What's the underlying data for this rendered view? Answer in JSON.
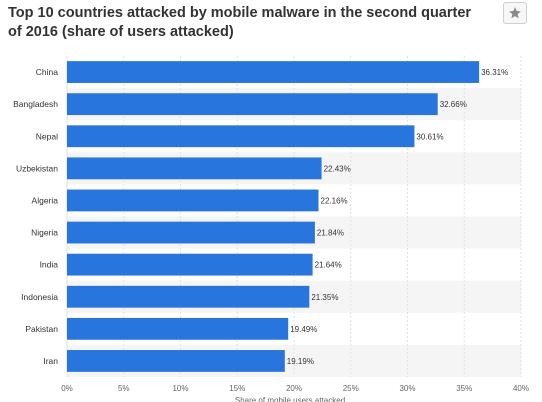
{
  "title": "Top 10 countries attacked by mobile malware in the second quarter of 2016 (share of users attacked)",
  "favorite_icon": "star-icon",
  "chart_data": {
    "type": "bar",
    "orientation": "horizontal",
    "categories": [
      "China",
      "Bangladesh",
      "Nepal",
      "Uzbekistan",
      "Algeria",
      "Nigeria",
      "India",
      "Indonesia",
      "Pakistan",
      "Iran"
    ],
    "values": [
      36.31,
      32.66,
      30.61,
      22.43,
      22.16,
      21.84,
      21.64,
      21.35,
      19.49,
      19.19
    ],
    "value_labels": [
      "36.31%",
      "32.66%",
      "30.61%",
      "22.43%",
      "22.16%",
      "21.84%",
      "21.64%",
      "21.35%",
      "19.49%",
      "19.19%"
    ],
    "x_ticks": [
      "0%",
      "5%",
      "10%",
      "15%",
      "20%",
      "25%",
      "30%",
      "35%",
      "40%"
    ],
    "xlabel": "Share of mobile users attacked",
    "xlim": [
      0,
      40
    ],
    "bar_color": "#2876dd",
    "grid": true
  }
}
